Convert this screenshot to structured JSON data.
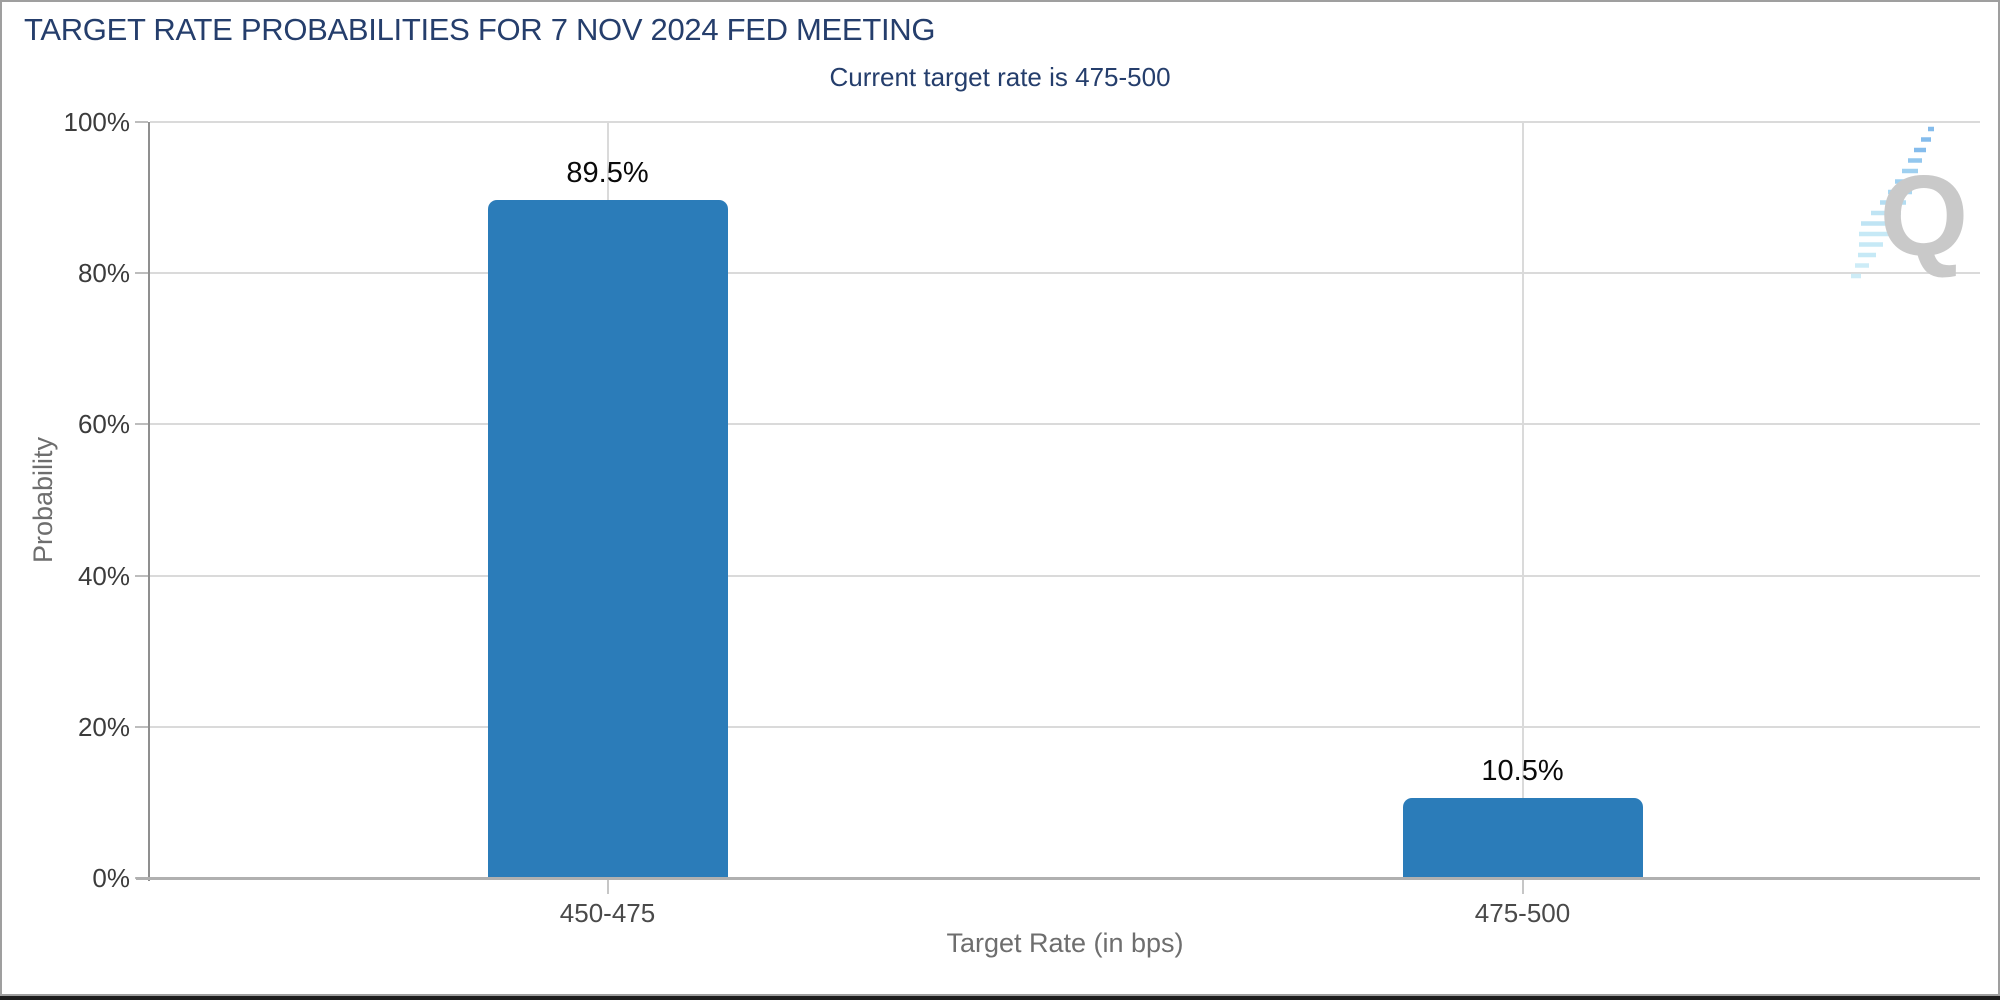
{
  "title": "TARGET RATE PROBABILITIES FOR 7 NOV 2024 FED MEETING",
  "subtitle": "Current target rate is 475-500",
  "watermark": {
    "letter": "Q"
  },
  "colors": {
    "title_navy": "#253e6c",
    "bar_blue": "#2b7cb9",
    "gridline": "#dadada",
    "axis_line": "#8f8f8f",
    "baseline": "#b0b0b0",
    "tick_text": "#3c3c3c",
    "axis_title_text": "#6e6e6e",
    "watermark_gray": "#c9c9c9"
  },
  "chart_data": {
    "type": "bar",
    "title": "TARGET RATE PROBABILITIES FOR 7 NOV 2024 FED MEETING",
    "subtitle": "Current target rate is 475-500",
    "categories": [
      "450-475",
      "475-500"
    ],
    "values": [
      89.5,
      10.5
    ],
    "data_labels": [
      "89.5%",
      "10.5%"
    ],
    "xlabel": "Target Rate (in bps)",
    "ylabel": "Probability",
    "ylim": [
      0,
      100
    ],
    "yticks": [
      {
        "value": 0,
        "label": "0%"
      },
      {
        "value": 20,
        "label": "20%"
      },
      {
        "value": 40,
        "label": "40%"
      },
      {
        "value": 60,
        "label": "60%"
      },
      {
        "value": 80,
        "label": "80%"
      },
      {
        "value": 100,
        "label": "100%"
      }
    ],
    "grid": true,
    "legend": false,
    "bar_color": "#2b7cb9"
  }
}
